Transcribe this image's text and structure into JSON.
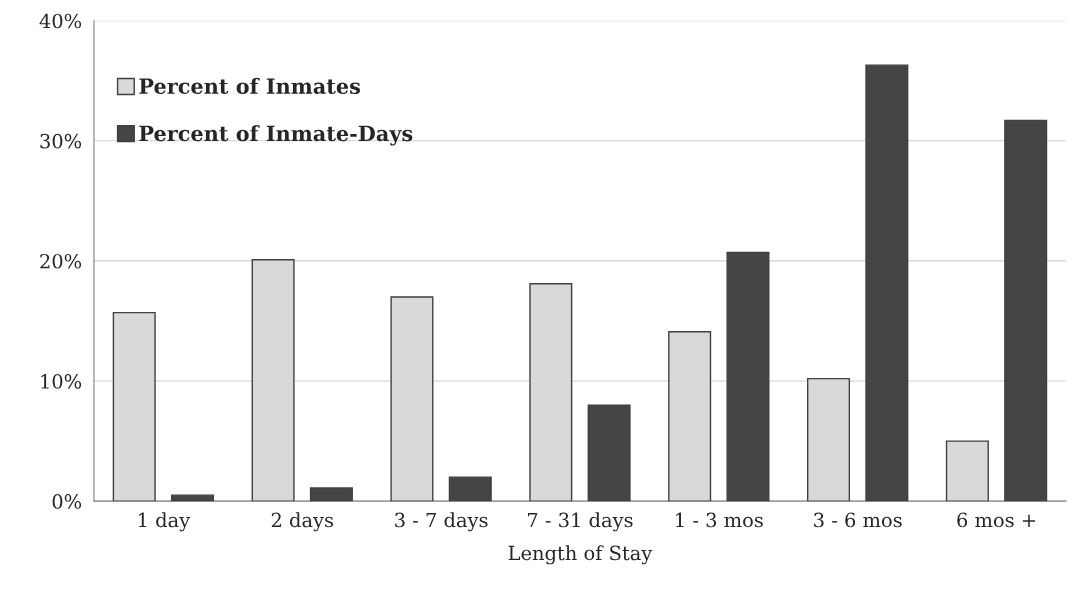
{
  "chart_data": {
    "type": "bar",
    "xlabel": "Length of Stay",
    "categories": [
      "1 day",
      "2 days",
      "3 - 7 days",
      "7 - 31 days",
      "1 - 3 mos",
      "3 - 6 mos",
      "6 mos +"
    ],
    "series": [
      {
        "name": "Percent of Inmates",
        "color": "#d9d9d9",
        "values": [
          15.7,
          20.1,
          17.0,
          18.1,
          14.1,
          10.2,
          5.0
        ]
      },
      {
        "name": "Percent of Inmate-Days",
        "color": "#454545",
        "values": [
          0.5,
          1.1,
          2.0,
          8.0,
          20.7,
          36.3,
          31.7
        ]
      }
    ],
    "ylim": [
      0,
      40
    ],
    "yticks": [
      {
        "value": 0,
        "label": "0%"
      },
      {
        "value": 10,
        "label": "10%"
      },
      {
        "value": 20,
        "label": "20%"
      },
      {
        "value": 30,
        "label": "30%"
      },
      {
        "value": 40,
        "label": "40%"
      }
    ],
    "grid": "y",
    "legend": "top left"
  }
}
